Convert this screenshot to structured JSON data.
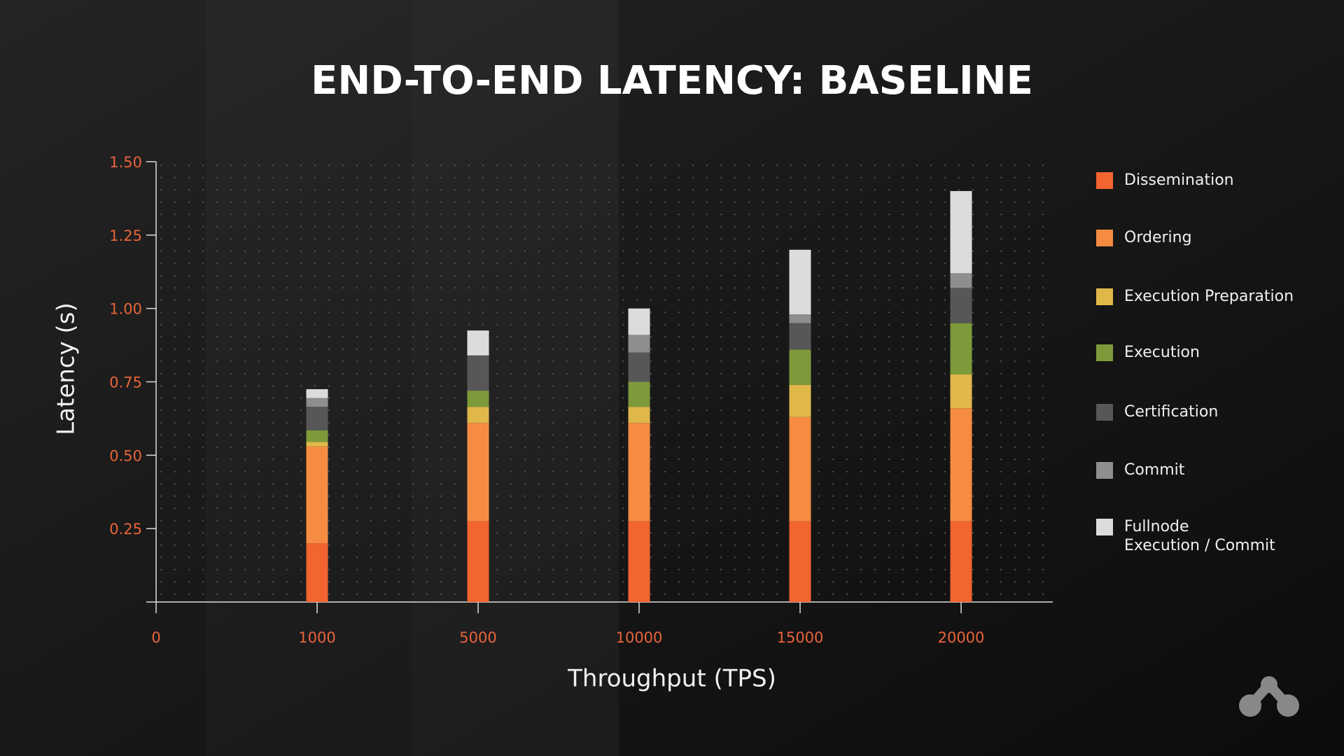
{
  "chart_data": {
    "type": "stacked-bar",
    "title": "END-TO-END LATENCY: BASELINE",
    "x_label": "Throughput (TPS)",
    "y_label": "Latency (s)",
    "categories": [
      "0",
      "1000",
      "5000",
      "10000",
      "15000",
      "20000"
    ],
    "ylim": [
      0,
      1.5
    ],
    "yticks": [
      0.25,
      {
        "value": 0.5,
        "label": "0.50"
      },
      0.75,
      {
        "value": 1.0,
        "label": "1.00"
      },
      1.25,
      {
        "value": 1.5,
        "label": "1.50"
      }
    ],
    "grid": true,
    "legend": "right",
    "series": [
      {
        "name": "Dissemination",
        "color": "#f26430",
        "values": [
          null,
          0.2,
          0.275,
          0.275,
          0.275,
          0.275
        ]
      },
      {
        "name": "Ordering",
        "color": "#f68c42",
        "values": [
          null,
          0.33,
          0.335,
          0.335,
          0.355,
          0.385
        ]
      },
      {
        "name": "Execution Preparation",
        "color": "#e0b84a",
        "values": [
          null,
          0.015,
          0.055,
          0.055,
          0.11,
          0.115
        ]
      },
      {
        "name": "Execution",
        "color": "#7d9a3a",
        "values": [
          null,
          0.04,
          0.055,
          0.085,
          0.12,
          0.175
        ]
      },
      {
        "name": "Certification",
        "color": "#575757",
        "values": [
          null,
          0.08,
          0.12,
          0.1,
          0.09,
          0.12
        ]
      },
      {
        "name": "Commit",
        "color": "#8e8e8e",
        "values": [
          null,
          0.03,
          0,
          0.06,
          0.03,
          0.05
        ]
      },
      {
        "name": "Fullnode Execution / Commit",
        "color": "#dcdcdc",
        "values": [
          null,
          0.03,
          0.085,
          0.09,
          0.22,
          0.28
        ]
      }
    ]
  }
}
